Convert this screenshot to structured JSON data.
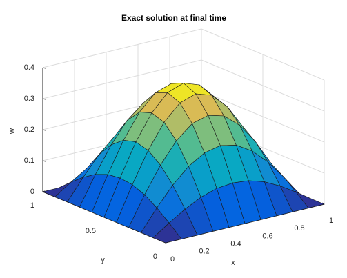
{
  "chart_data": {
    "type": "surface",
    "title": "Exact solution at final time",
    "xlabel": "x",
    "ylabel": "y",
    "zlabel": "w",
    "x": [
      0,
      0.1,
      0.2,
      0.3,
      0.4,
      0.5,
      0.6,
      0.7,
      0.8,
      0.9,
      1
    ],
    "y": [
      0,
      0.1,
      0.2,
      0.3,
      0.4,
      0.5,
      0.6,
      0.7,
      0.8,
      0.9,
      1
    ],
    "z": [
      [
        0,
        0,
        0,
        0,
        0,
        0,
        0,
        0,
        0,
        0,
        0
      ],
      [
        0,
        0.035,
        0.067,
        0.093,
        0.109,
        0.114,
        0.109,
        0.093,
        0.067,
        0.035,
        0
      ],
      [
        0,
        0.067,
        0.128,
        0.176,
        0.207,
        0.218,
        0.207,
        0.176,
        0.128,
        0.067,
        0
      ],
      [
        0,
        0.093,
        0.176,
        0.242,
        0.285,
        0.299,
        0.285,
        0.242,
        0.176,
        0.093,
        0
      ],
      [
        0,
        0.109,
        0.207,
        0.285,
        0.335,
        0.352,
        0.335,
        0.285,
        0.207,
        0.109,
        0
      ],
      [
        0,
        0.114,
        0.218,
        0.299,
        0.352,
        0.37,
        0.352,
        0.299,
        0.218,
        0.114,
        0
      ],
      [
        0,
        0.109,
        0.207,
        0.285,
        0.335,
        0.352,
        0.335,
        0.285,
        0.207,
        0.109,
        0
      ],
      [
        0,
        0.093,
        0.176,
        0.242,
        0.285,
        0.299,
        0.285,
        0.242,
        0.176,
        0.093,
        0
      ],
      [
        0,
        0.067,
        0.128,
        0.176,
        0.207,
        0.218,
        0.207,
        0.176,
        0.128,
        0.067,
        0
      ],
      [
        0,
        0.035,
        0.067,
        0.093,
        0.109,
        0.114,
        0.109,
        0.093,
        0.067,
        0.035,
        0
      ],
      [
        0,
        0,
        0,
        0,
        0,
        0,
        0,
        0,
        0,
        0,
        0
      ]
    ],
    "xlim": [
      0,
      1
    ],
    "xticks": [
      0,
      0.2,
      0.4,
      0.6,
      0.8,
      1
    ],
    "ylim": [
      0,
      1
    ],
    "yticks": [
      0,
      0.5,
      1
    ],
    "zlim": [
      0,
      0.4
    ],
    "zticks": [
      0,
      0.1,
      0.2,
      0.3,
      0.4
    ],
    "grid": true,
    "colormap": [
      "#352a87",
      "#0363e1",
      "#1485d4",
      "#06a7c6",
      "#38b99e",
      "#92bf73",
      "#d9ba56",
      "#f9fb0e"
    ]
  }
}
